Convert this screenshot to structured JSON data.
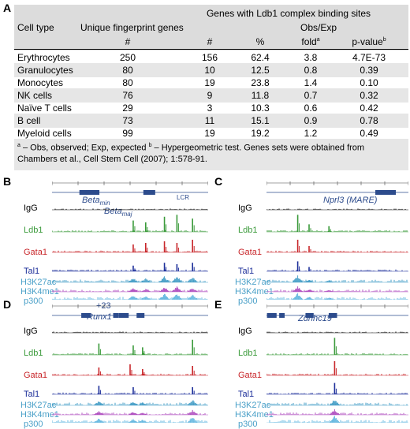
{
  "panelA": {
    "letter": "A",
    "header": {
      "cell_type": "Cell type",
      "unique": "Unique fingerprint genes",
      "genes_with": "Genes with Ldb1 complex binding sites",
      "obs_exp": "Obs/Exp",
      "hash1": "#",
      "hash2": "#",
      "percent": "%",
      "fold": "fold",
      "fold_sup": "a",
      "pvalue": "p-value",
      "pvalue_sup": "b"
    },
    "rows": [
      {
        "cell": "Erythrocytes",
        "unique": "250",
        "n": "156",
        "pct": "62.4",
        "fold": "3.8",
        "p": "4.7E-73"
      },
      {
        "cell": "Granulocytes",
        "unique": "80",
        "n": "10",
        "pct": "12.5",
        "fold": "0.8",
        "p": "0.39"
      },
      {
        "cell": "Monocytes",
        "unique": "80",
        "n": "19",
        "pct": "23.8",
        "fold": "1.4",
        "p": "0.10"
      },
      {
        "cell": "NK cells",
        "unique": "76",
        "n": "9",
        "pct": "11.8",
        "fold": "0.7",
        "p": "0.32"
      },
      {
        "cell": "Naïve T cells",
        "unique": "29",
        "n": "3",
        "pct": "10.3",
        "fold": "0.6",
        "p": "0.42"
      },
      {
        "cell": "B cell",
        "unique": "73",
        "n": "11",
        "pct": "15.1",
        "fold": "0.9",
        "p": "0.78"
      },
      {
        "cell": "Myeloid cells",
        "unique": "99",
        "n": "19",
        "pct": "19.2",
        "fold": "1.2",
        "p": "0.49"
      }
    ],
    "footnote": {
      "a_mark": "a",
      "a_text": " – Obs, observed; Exp, expected  ",
      "b_mark": "b",
      "b_text": " – Hypergeometric test.  Genes sets were obtained from Chambers et al., Cell Stem Cell (2007); 1:578-91."
    }
  },
  "tracks": {
    "igg": "IgG",
    "ldb1": "Ldb1",
    "gata1": "Gata1",
    "tal1": "Tal1",
    "h3k27ac": "H3K27ac",
    "h3k4me1": "H3K4me1",
    "p300": "p300"
  },
  "panelB": {
    "letter": "B",
    "gene1": "Beta",
    "gene1_sub": "min",
    "gene2": "Beta",
    "gene2_sub": "maj",
    "lcr": "LCR"
  },
  "panelC": {
    "letter": "C",
    "gene": "Nprl3 (MARE)"
  },
  "panelD": {
    "letter": "D",
    "gene": "Runx1",
    "enh": "+23"
  },
  "panelE": {
    "letter": "E",
    "gene": "Zdhhc19"
  },
  "colors": {
    "igg": "#000000",
    "ldb1": "#3a9a3a",
    "gata1": "#c8262a",
    "tal1": "#1d2f9a",
    "h3k27ac": "#4aa0c8",
    "h3k4me1": "#b050c0",
    "p300": "#66b8e0",
    "genes": "#2c4b8c"
  }
}
